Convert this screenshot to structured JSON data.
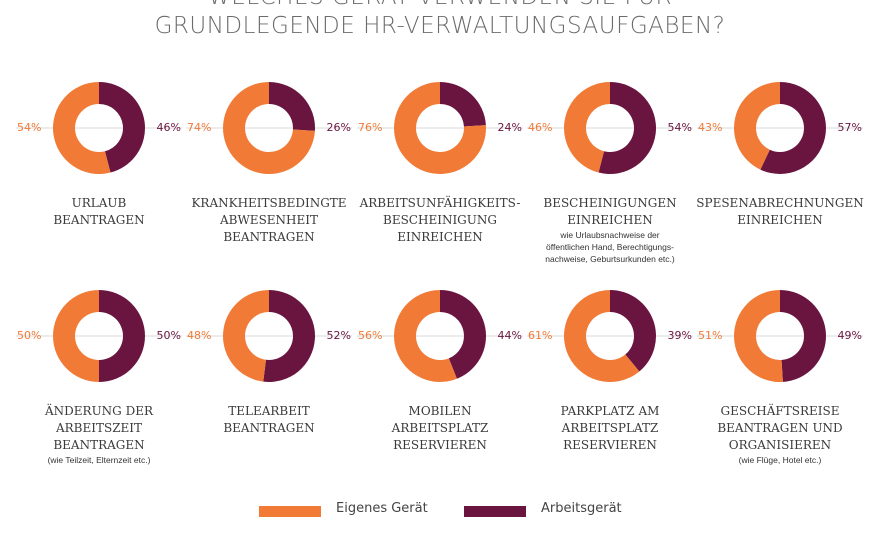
{
  "header": {
    "title_line1": "WELCHES GERÄT VERWENDEN SIE FÜR",
    "title_line2": "GRUNDLEGENDE HR-VERWALTUNGSAUFGABEN?"
  },
  "colors": {
    "own": "#f07a36",
    "work": "#6a1540",
    "divider": "#d9d9d9"
  },
  "legend": [
    {
      "label": "Eigenes Gerät",
      "color": "#f07a36"
    },
    {
      "label": "Arbeitsgerät",
      "color": "#6a1540"
    }
  ],
  "chart_data": {
    "type": "pie",
    "series": [
      {
        "name": "Eigenes Gerät"
      },
      {
        "name": "Arbeitsgerät"
      }
    ],
    "charts": [
      {
        "own": 54,
        "work": 46,
        "own_label": "54%",
        "work_label": "46%",
        "label_lines": [
          "URLAUB",
          "BEANTRAGEN"
        ],
        "note_lines": []
      },
      {
        "own": 74,
        "work": 26,
        "own_label": "74%",
        "work_label": "26%",
        "label_lines": [
          "KRANKHEITSBEDINGTE",
          "ABWESENHEIT",
          "BEANTRAGEN"
        ],
        "note_lines": []
      },
      {
        "own": 76,
        "work": 24,
        "own_label": "76%",
        "work_label": "24%",
        "label_lines": [
          "ARBEITSUNFÄHIGKEITS-",
          "BESCHEINIGUNG",
          "EINREICHEN"
        ],
        "note_lines": []
      },
      {
        "own": 46,
        "work": 54,
        "own_label": "46%",
        "work_label": "54%",
        "label_lines": [
          "BESCHEINIGUNGEN",
          "EINREICHEN"
        ],
        "note_lines": [
          "wie Urlaubsnachweise der",
          "öffentlichen Hand, Berechtigungs-",
          "nachweise, Geburtsurkunden etc.)"
        ]
      },
      {
        "own": 43,
        "work": 57,
        "own_label": "43%",
        "work_label": "57%",
        "label_lines": [
          "SPESENABRECHNUNGEN",
          "EINREICHEN"
        ],
        "note_lines": []
      },
      {
        "own": 50,
        "work": 50,
        "own_label": "50%",
        "work_label": "50%",
        "label_lines": [
          "ÄNDERUNG DER",
          "ARBEITSZEIT",
          "BEANTRAGEN"
        ],
        "note_lines": [
          "(wie Teilzeit, Elternzeit etc.)"
        ]
      },
      {
        "own": 48,
        "work": 52,
        "own_label": "48%",
        "work_label": "52%",
        "label_lines": [
          "TELEARBEIT",
          "BEANTRAGEN"
        ],
        "note_lines": []
      },
      {
        "own": 56,
        "work": 44,
        "own_label": "56%",
        "work_label": "44%",
        "label_lines": [
          "MOBILEN",
          "ARBEITSPLATZ",
          "RESERVIEREN"
        ],
        "note_lines": []
      },
      {
        "own": 61,
        "work": 39,
        "own_label": "61%",
        "work_label": "39%",
        "label_lines": [
          "PARKPLATZ AM",
          "ARBEITSPLATZ",
          "RESERVIEREN"
        ],
        "note_lines": []
      },
      {
        "own": 51,
        "work": 49,
        "own_label": "51%",
        "work_label": "49%",
        "label_lines": [
          "GESCHÄFTSREISE",
          "BEANTRAGEN UND",
          "ORGANISIEREN"
        ],
        "note_lines": [
          "(wie Flüge, Hotel etc.)"
        ]
      }
    ]
  }
}
